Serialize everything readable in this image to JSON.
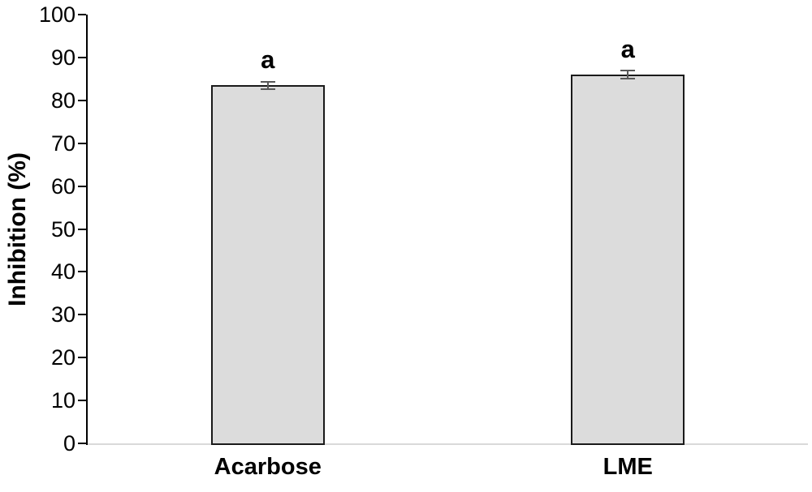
{
  "chart_data": {
    "type": "bar",
    "title": "",
    "xlabel": "",
    "ylabel": "Inhibition (%)",
    "categories": [
      "Acarbose",
      "LME"
    ],
    "values": [
      83.5,
      86.0
    ],
    "errors": [
      0.9,
      1.0
    ],
    "significance_labels": [
      "a",
      "a"
    ],
    "ylim": [
      0,
      100
    ],
    "yticks": [
      0,
      10,
      20,
      30,
      40,
      50,
      60,
      70,
      80,
      90,
      100
    ],
    "grid": false,
    "legend": null,
    "colors": {
      "bar_fill": "#dcdcdc",
      "bar_border": "#1a1a1a",
      "error_bar": "#595959",
      "y_axis": "#000000",
      "x_baseline": "#d9d9d9",
      "text": "#000000"
    }
  }
}
